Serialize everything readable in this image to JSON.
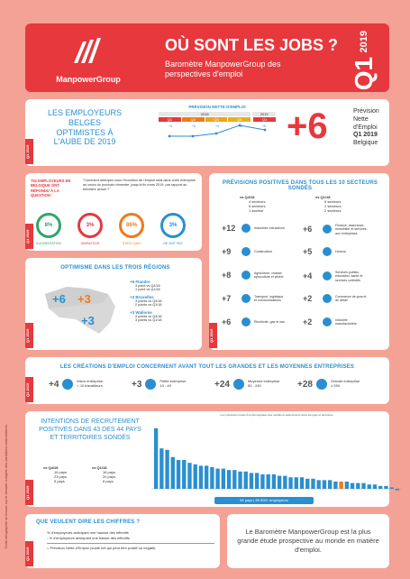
{
  "header": {
    "brand": "ManpowerGroup",
    "title": "OÙ SONT LES JOBS ?",
    "subtitle": "Baromètre ManpowerGroup des perspectives d'emploi",
    "quarter": "Q1",
    "year": "2019"
  },
  "outlook": {
    "title": "LES EMPLOYEURS BELGES OPTIMISTES À L'AUBE DE 2019",
    "tag": "Q1 2019",
    "chart_title": "PRÉVISION NETTE D'EMPLOI",
    "years": [
      "2018",
      "2019"
    ],
    "quarters": [
      "Q1",
      "Q2",
      "Q3",
      "Q4",
      "Q1"
    ],
    "values": [
      "+3",
      "+3",
      "+4",
      "+8",
      "+6"
    ],
    "big_value": "+6",
    "big_desc_1": "Prévision",
    "big_desc_2": "Nette",
    "big_desc_3": "d'Emploi",
    "big_desc_4": "Q1 2019",
    "big_desc_5": "Belgique"
  },
  "question": {
    "tag": "Q1 2019",
    "intro": "752 EMPLOYEURS EN BELGIQUE ONT RÉPONDU À LA QUESTION :",
    "text": "\"Comment anticipez-vous l'évolution de l'emploi total dans votre entreprise au cours du prochain trimestre, jusqu'à fin mars 2019, par rapport au trimestre actuel ?\"",
    "items": [
      {
        "value": "8%",
        "label": "AUGMENTATION",
        "color": "#2fa66b"
      },
      {
        "value": "3%",
        "label": "DIMINUTION",
        "color": "#e6383d"
      },
      {
        "value": "86%",
        "label": "STATU QUO",
        "color": "#f07a1a"
      },
      {
        "value": "3%",
        "label": "NE SAIT PAS",
        "color": "#2a8fd0"
      }
    ]
  },
  "regions": {
    "tag": "Q1 2019",
    "title": "OPTIMISME DANS LES TROIS RÉGIONS",
    "map_values": [
      "+6",
      "+3",
      "+3"
    ],
    "entries": [
      {
        "value": "+6 Flandre",
        "l1": "3 point vs Q4/18",
        "l2": "1 point vs Q1/18"
      },
      {
        "value": "+3 Bruxelles",
        "l1": "3 points vs Q4/18",
        "l2": "2 points vs Q1/18"
      },
      {
        "value": "+3 Wallonie",
        "l1": "3 points vs Q4/18",
        "l2": "3 points vs Q1/18"
      }
    ]
  },
  "sectors": {
    "tag": "Q1 2019",
    "title": "PRÉVISIONS POSITIVES DANS TOUS LES 10 SECTEURS SONDÉS",
    "cmp_left_title": "vs Q4/18",
    "cmp_left": [
      "4 secteurs",
      "5 secteurs",
      "1 secteur"
    ],
    "cmp_right_title": "vs Q1/18",
    "cmp_right": [
      "6 secteurs",
      "2 secteurs",
      "2 secteurs"
    ],
    "left": [
      {
        "value": "+12",
        "name": "Industries extractives"
      },
      {
        "value": "+9",
        "name": "Construction"
      },
      {
        "value": "+8",
        "name": "Agriculture, chasse, sylviculture et pêche"
      },
      {
        "value": "+7",
        "name": "Transport, logistique et communications"
      },
      {
        "value": "+6",
        "name": "Électricité, gaz et eau"
      }
    ],
    "right": [
      {
        "value": "+6",
        "name": "Finance, assurance, immobilier et services aux entreprises"
      },
      {
        "value": "+5",
        "name": "Horeca"
      },
      {
        "value": "+4",
        "name": "Services publics, éducation, santé et services collectifs"
      },
      {
        "value": "+2",
        "name": "Commerce de gros et de détail"
      },
      {
        "value": "+2",
        "name": "Industrie manufacturière"
      }
    ]
  },
  "sizes": {
    "tag": "Q1 2019",
    "title": "LES CRÉATIONS D'EMPLOI CONCERNENT AVANT TOUT LES GRANDES ET LES MOYENNES ENTREPRISES",
    "items": [
      {
        "value": "+4",
        "name": "Micro entreprise",
        "range": "< 10 travailleurs"
      },
      {
        "value": "+3",
        "name": "Petite entreprise",
        "range": "10 - 49"
      },
      {
        "value": "+24",
        "name": "Moyenne entreprise",
        "range": "50 - 249"
      },
      {
        "value": "+28",
        "name": "Grande entreprise",
        "range": "≥ 250"
      }
    ]
  },
  "global": {
    "tag": "Q1 2019",
    "title": "INTENTIONS DE RECRUTEMENT POSITIVES DANS 43 DES 44 PAYS ET TERRITOIRES SONDÉS",
    "cmp_left_title": "vs Q4/18",
    "cmp_left": [
      "16 pays",
      "23 pays",
      "5 pays"
    ],
    "cmp_right_title": "vs Q1/18",
    "cmp_right": [
      "16 pays",
      "20 pays",
      "8 pays"
    ],
    "chart_caption": "Les prévisions nettes d'emploi ajustées des variations saisonnières dans les pays et territoires",
    "footer": "44 pays | 59 000+ employeurs"
  },
  "chart_data": {
    "type": "bar",
    "values": [
      42,
      28,
      27,
      22,
      20,
      20,
      18,
      17,
      16,
      16,
      15,
      14,
      14,
      13,
      13,
      12,
      12,
      11,
      11,
      10,
      10,
      10,
      9,
      9,
      8,
      8,
      8,
      7,
      7,
      6,
      6,
      6,
      5,
      5,
      5,
      4,
      4,
      4,
      3,
      3,
      2,
      2,
      1,
      -1
    ],
    "highlight_index": 33,
    "ylim": [
      -5,
      45
    ]
  },
  "definition": {
    "tag": "Q1 2019",
    "title": "QUE VEULENT DIRE LES CHIFFRES ?",
    "l1": "% d'employeurs anticipant une hausse des effectifs",
    "l2": "- % d'employeurs anticipant une baisse des effectifs",
    "l3": "= Prévision Nette d'Emploi (solde net qui peut être positif ou négatif)"
  },
  "about": {
    "text": "Le Baromètre ManpowerGroup est la plus grande étude prospective au monde en matière d'emploi."
  },
  "side_note": "Cette infographie se trouve sur le dossier complet des variations saisonnières."
}
